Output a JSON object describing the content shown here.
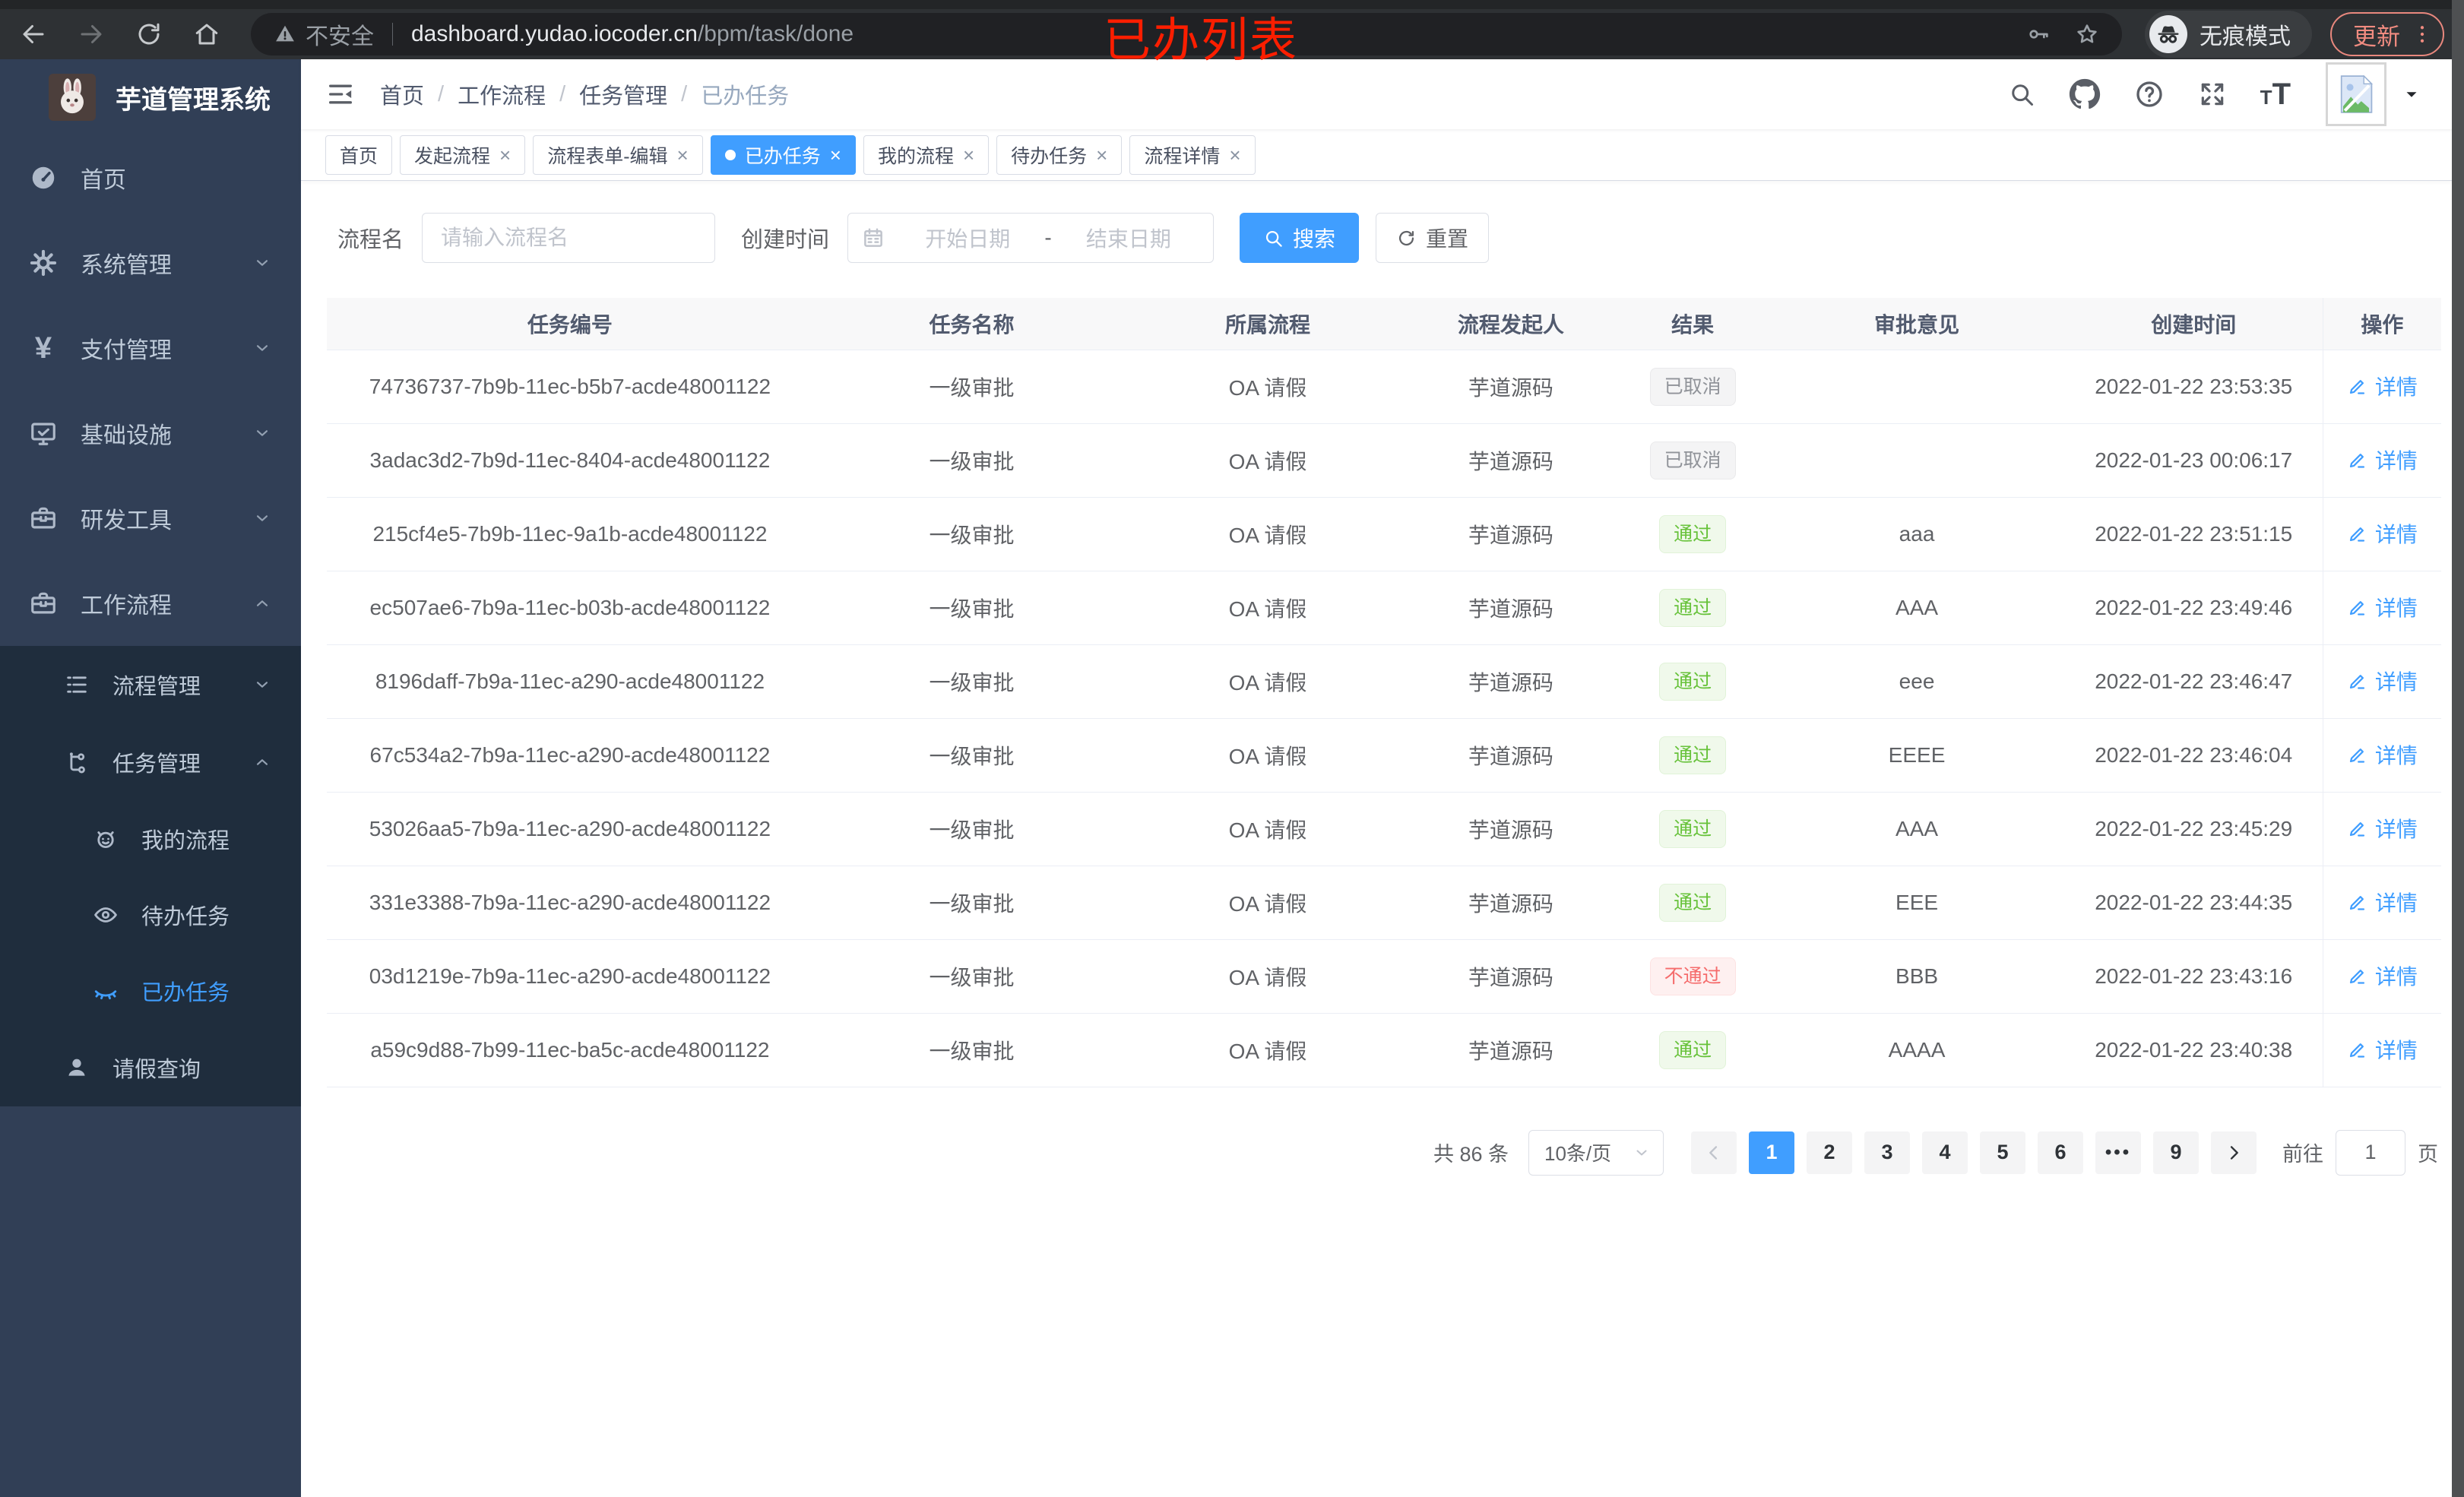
{
  "browser": {
    "security_label": "不安全",
    "url_host": "dashboard.yudao.iocoder.cn",
    "url_path": "/bpm/task/done",
    "incognito_label": "无痕模式",
    "update_label": "更新"
  },
  "annotation": {
    "text": "已办列表",
    "color": "#fb1e00"
  },
  "sidebar": {
    "title": "芋道管理系统",
    "items": [
      {
        "key": "home",
        "icon": "dashboard",
        "label": "首页",
        "level": 1
      },
      {
        "key": "system",
        "icon": "gear",
        "label": "系统管理",
        "level": 1,
        "chevron": "down"
      },
      {
        "key": "payment",
        "icon": "yen",
        "label": "支付管理",
        "level": 1,
        "chevron": "down"
      },
      {
        "key": "infra",
        "icon": "monitor",
        "label": "基础设施",
        "level": 1,
        "chevron": "down"
      },
      {
        "key": "dev-tools",
        "icon": "toolbox",
        "label": "研发工具",
        "level": 1,
        "chevron": "down"
      },
      {
        "key": "workflow",
        "icon": "toolbox",
        "label": "工作流程",
        "level": 1,
        "chevron": "up"
      },
      {
        "key": "process-mgmt",
        "icon": "list-tree",
        "label": "流程管理",
        "level": 2,
        "chevron": "down",
        "insub": true
      },
      {
        "key": "task-mgmt",
        "icon": "flow-tree",
        "label": "任务管理",
        "level": 2,
        "chevron": "up",
        "insub": true
      },
      {
        "key": "my-process",
        "icon": "robot",
        "label": "我的流程",
        "level": 3,
        "insub": true
      },
      {
        "key": "todo-tasks",
        "icon": "eye-open",
        "label": "待办任务",
        "level": 3,
        "insub": true
      },
      {
        "key": "done-tasks",
        "icon": "eye-closed",
        "label": "已办任务",
        "level": 3,
        "insub": true,
        "active": true
      },
      {
        "key": "leave-query",
        "icon": "user",
        "label": "请假查询",
        "level": 2,
        "insub": true
      }
    ]
  },
  "navbar": {
    "breadcrumb": [
      "首页",
      "工作流程",
      "任务管理",
      "已办任务"
    ],
    "icons": [
      "search",
      "github",
      "question",
      "fullscreen",
      "font-size"
    ]
  },
  "tabs": [
    {
      "label": "首页",
      "closable": false,
      "active": false
    },
    {
      "label": "发起流程",
      "closable": true,
      "active": false
    },
    {
      "label": "流程表单-编辑",
      "closable": true,
      "active": false
    },
    {
      "label": "已办任务",
      "closable": true,
      "active": true
    },
    {
      "label": "我的流程",
      "closable": true,
      "active": false
    },
    {
      "label": "待办任务",
      "closable": true,
      "active": false
    },
    {
      "label": "流程详情",
      "closable": true,
      "active": false
    }
  ],
  "filters": {
    "name_label": "流程名",
    "name_placeholder": "请输入流程名",
    "time_label": "创建时间",
    "start_placeholder": "开始日期",
    "range_separator": "-",
    "end_placeholder": "结束日期",
    "search_label": "搜索",
    "reset_label": "重置"
  },
  "table": {
    "headers": [
      "任务编号",
      "任务名称",
      "所属流程",
      "流程发起人",
      "结果",
      "审批意见",
      "创建时间",
      "操作"
    ],
    "detail_label": "详情",
    "rows": [
      {
        "id": "74736737-7b9b-11ec-b5b7-acde48001122",
        "name": "一级审批",
        "process": "OA 请假",
        "starter": "芋道源码",
        "result": "已取消",
        "result_type": "info",
        "comment": "",
        "created": "2022-01-22 23:53:35"
      },
      {
        "id": "3adac3d2-7b9d-11ec-8404-acde48001122",
        "name": "一级审批",
        "process": "OA 请假",
        "starter": "芋道源码",
        "result": "已取消",
        "result_type": "info",
        "comment": "",
        "created": "2022-01-23 00:06:17"
      },
      {
        "id": "215cf4e5-7b9b-11ec-9a1b-acde48001122",
        "name": "一级审批",
        "process": "OA 请假",
        "starter": "芋道源码",
        "result": "通过",
        "result_type": "success",
        "comment": "aaa",
        "created": "2022-01-22 23:51:15"
      },
      {
        "id": "ec507ae6-7b9a-11ec-b03b-acde48001122",
        "name": "一级审批",
        "process": "OA 请假",
        "starter": "芋道源码",
        "result": "通过",
        "result_type": "success",
        "comment": "AAA",
        "created": "2022-01-22 23:49:46"
      },
      {
        "id": "8196daff-7b9a-11ec-a290-acde48001122",
        "name": "一级审批",
        "process": "OA 请假",
        "starter": "芋道源码",
        "result": "通过",
        "result_type": "success",
        "comment": "eee",
        "created": "2022-01-22 23:46:47"
      },
      {
        "id": "67c534a2-7b9a-11ec-a290-acde48001122",
        "name": "一级审批",
        "process": "OA 请假",
        "starter": "芋道源码",
        "result": "通过",
        "result_type": "success",
        "comment": "EEEE",
        "created": "2022-01-22 23:46:04"
      },
      {
        "id": "53026aa5-7b9a-11ec-a290-acde48001122",
        "name": "一级审批",
        "process": "OA 请假",
        "starter": "芋道源码",
        "result": "通过",
        "result_type": "success",
        "comment": "AAA",
        "created": "2022-01-22 23:45:29"
      },
      {
        "id": "331e3388-7b9a-11ec-a290-acde48001122",
        "name": "一级审批",
        "process": "OA 请假",
        "starter": "芋道源码",
        "result": "通过",
        "result_type": "success",
        "comment": "EEE",
        "created": "2022-01-22 23:44:35"
      },
      {
        "id": "03d1219e-7b9a-11ec-a290-acde48001122",
        "name": "一级审批",
        "process": "OA 请假",
        "starter": "芋道源码",
        "result": "不通过",
        "result_type": "danger",
        "comment": "BBB",
        "created": "2022-01-22 23:43:16"
      },
      {
        "id": "a59c9d88-7b99-11ec-ba5c-acde48001122",
        "name": "一级审批",
        "process": "OA 请假",
        "starter": "芋道源码",
        "result": "通过",
        "result_type": "success",
        "comment": "AAAA",
        "created": "2022-01-22 23:40:38"
      }
    ]
  },
  "pagination": {
    "total_label": "共 86 条",
    "page_size_label": "10条/页",
    "pages": [
      "1",
      "2",
      "3",
      "4",
      "5",
      "6",
      "...",
      "9"
    ],
    "active_page": "1",
    "goto_label": "前往",
    "goto_value": "1",
    "page_unit_label": "页"
  },
  "colors": {
    "accent": "#409eff",
    "success": "#67c23a",
    "danger": "#f56c6c",
    "info": "#909399",
    "sidebar_bg": "#313f56",
    "submenu_bg": "#1f2d3d",
    "annotation_red": "#fb1e00"
  }
}
